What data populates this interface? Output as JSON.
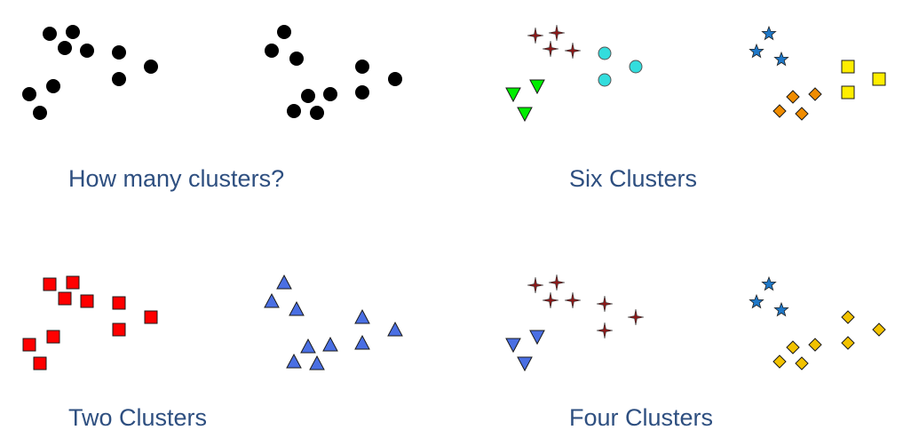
{
  "captions": {
    "how_many": "How many clusters?",
    "six": "Six Clusters",
    "two": "Two Clusters",
    "four": "Four Clusters"
  },
  "colors": {
    "black": "#000000",
    "red": "#ff0000",
    "blue": "#4a6fe3",
    "darkred": "#8b1a1a",
    "green": "#00ee00",
    "cyan": "#33dddd",
    "steelblue": "#1f78c8",
    "orange": "#f08c00",
    "yellow": "#ffee00",
    "gold": "#f2c200"
  },
  "panels": [
    {
      "id": "how-many",
      "groups": [
        {
          "id": "group-a",
          "shape": "dot",
          "color": "black"
        },
        {
          "id": "group-b",
          "shape": "dot",
          "color": "black"
        }
      ]
    },
    {
      "id": "six",
      "groups": [
        {
          "id": "cluster-1",
          "shape": "sparkle",
          "color": "darkred"
        },
        {
          "id": "cluster-2",
          "shape": "triangle-down",
          "color": "green"
        },
        {
          "id": "cluster-3",
          "shape": "circle",
          "color": "cyan"
        },
        {
          "id": "cluster-4",
          "shape": "star",
          "color": "steelblue"
        },
        {
          "id": "cluster-5",
          "shape": "diamond",
          "color": "orange"
        },
        {
          "id": "cluster-6",
          "shape": "square",
          "color": "yellow"
        }
      ]
    },
    {
      "id": "two",
      "groups": [
        {
          "id": "cluster-1",
          "shape": "square",
          "color": "red"
        },
        {
          "id": "cluster-2",
          "shape": "triangle-up",
          "color": "blue"
        }
      ]
    },
    {
      "id": "four",
      "groups": [
        {
          "id": "cluster-1",
          "shape": "sparkle",
          "color": "darkred"
        },
        {
          "id": "cluster-2",
          "shape": "triangle-down",
          "color": "blue"
        },
        {
          "id": "cluster-3",
          "shape": "star",
          "color": "steelblue"
        },
        {
          "id": "cluster-4",
          "shape": "diamond",
          "color": "gold"
        }
      ]
    }
  ]
}
